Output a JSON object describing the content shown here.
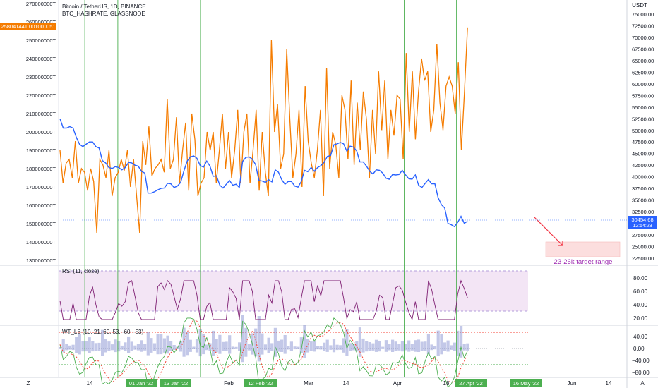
{
  "legend": {
    "symbol": "Bitcoin / TetherUS, 1D, BINANCE",
    "indicator": "BTC_HASHRATE, GLASSNODE",
    "hashrate_flag": "258041441.001000051"
  },
  "currency": "USDT",
  "price_tag": {
    "value": "30454.68",
    "countdown": "12:54:23"
  },
  "annotation": {
    "text": "23-26k target range"
  },
  "rsi": {
    "title": "RSI (11, close)",
    "ticks": [
      "80.00",
      "60.00",
      "40.00",
      "20.00"
    ]
  },
  "wt": {
    "title": "WT_LB (10, 21, 60, 53, -60, -53)",
    "ticks": [
      "40.00",
      "0.00",
      "−40.00",
      "−80.00"
    ]
  },
  "right_axis_ticks": [
    "75000.00",
    "72500.00",
    "70000.00",
    "67500.00",
    "65000.00",
    "62500.00",
    "60000.00",
    "57500.00",
    "55000.00",
    "52500.00",
    "50000.00",
    "47500.00",
    "45000.00",
    "42500.00",
    "40000.00",
    "37500.00",
    "35000.00",
    "32500.00",
    "27500.00",
    "25000.00",
    "22500.00"
  ],
  "left_axis_ticks": [
    "270000000T",
    "260000000T",
    "250000000T",
    "240000000T",
    "230000000T",
    "220000000T",
    "210000000T",
    "200000000T",
    "190000000T",
    "180000000T",
    "170000000T",
    "160000000T",
    "150000000T",
    "140000000T",
    "130000000T"
  ],
  "time_axis": {
    "ticks": [
      "14",
      "Feb",
      "Mar",
      "14",
      "Apr",
      "18",
      "Jun",
      "14"
    ],
    "highlights": [
      "01 Jan '22",
      "13 Jan '22",
      "12 Feb '22",
      "27 Apr '22",
      "16 May '22"
    ]
  },
  "corner_buttons": {
    "left": "Z",
    "right": "A"
  },
  "colors": {
    "price": "#2962ff",
    "hashrate": "#f57c00",
    "vline": "#4caf50",
    "rsi": "#7e1e72",
    "wt1": "#4caf50",
    "wt2": "#f44336",
    "target": "#fcdede",
    "arrow": "#f23645"
  },
  "chart_data": {
    "type": "line",
    "x_range": [
      "2021-12-23",
      "2022-06-19"
    ],
    "vertical_markers": [
      "2022-01-01",
      "2022-01-13",
      "2022-02-12",
      "2022-04-27",
      "2022-05-16"
    ],
    "price_axis": {
      "unit": "USDT",
      "ylim": [
        22500,
        75000
      ]
    },
    "hashrate_axis": {
      "unit": "T",
      "ylim": [
        130000000,
        270000000
      ]
    },
    "target_range": [
      23000,
      26000
    ],
    "series": [
      {
        "name": "Bitcoin / TetherUS",
        "x_start": "2021-12-23",
        "values": [
          52500,
          50500,
          50500,
          50800,
          50500,
          48500,
          47000,
          46500,
          47000,
          47500,
          47500,
          46500,
          46200,
          43500,
          43000,
          42000,
          41800,
          42200,
          42000,
          41500,
          42000,
          43100,
          43000,
          42500,
          42300,
          41200,
          40800,
          36500,
          36500,
          36800,
          37200,
          37500,
          37600,
          38600,
          38500,
          37700,
          38000,
          38800,
          41300,
          43400,
          44300,
          44500,
          44000,
          42400,
          42100,
          43400,
          42300,
          40100,
          40200,
          38200,
          37600,
          38400,
          39200,
          38200,
          38400,
          37700,
          43300,
          44200,
          44300,
          43800,
          42600,
          39200,
          39100,
          38800,
          39400,
          38900,
          41500,
          41000,
          39400,
          38400,
          39000,
          39000,
          38000,
          37800,
          39000,
          41400,
          41100,
          42000,
          41200,
          42000,
          42400,
          43100,
          44400,
          44600,
          46900,
          47100,
          47400,
          47100,
          45500,
          46600,
          46400,
          45600,
          43200,
          43200,
          42300,
          41200,
          40600,
          41500,
          41400,
          40800,
          39700,
          39500,
          40500,
          40400,
          40500,
          41400,
          40400,
          39600,
          39500,
          40400,
          38200,
          37700,
          38600,
          39400,
          38500,
          38500,
          35500,
          34000,
          33300,
          30000,
          29700,
          29300,
          30200,
          31500,
          30000,
          30450
        ]
      },
      {
        "name": "BTC_HASHRATE",
        "x_start": "2021-12-23",
        "values": [
          190000000,
          172000000,
          183000000,
          185000000,
          175000000,
          195000000,
          172000000,
          180000000,
          178000000,
          168000000,
          180000000,
          173000000,
          145000000,
          185000000,
          182000000,
          175000000,
          190000000,
          165000000,
          175000000,
          178000000,
          185000000,
          179000000,
          190000000,
          170000000,
          185000000,
          165000000,
          145000000,
          195000000,
          182000000,
          203000000,
          176000000,
          180000000,
          182000000,
          185000000,
          178000000,
          218000000,
          180000000,
          185000000,
          208000000,
          172000000,
          190000000,
          205000000,
          168000000,
          210000000,
          196000000,
          165000000,
          172000000,
          175000000,
          200000000,
          190000000,
          200000000,
          172000000,
          190000000,
          210000000,
          180000000,
          200000000,
          175000000,
          190000000,
          212000000,
          172000000,
          200000000,
          210000000,
          172000000,
          190000000,
          212000000,
          168000000,
          200000000,
          178000000,
          165000000,
          250000000,
          200000000,
          215000000,
          180000000,
          188000000,
          245000000,
          207000000,
          175000000,
          188000000,
          212000000,
          170000000,
          225000000,
          195000000,
          183000000,
          175000000,
          190000000,
          212000000,
          165000000,
          235000000,
          180000000,
          200000000,
          193000000,
          175000000,
          220000000,
          212000000,
          185000000,
          228000000,
          182000000,
          216000000,
          190000000,
          222000000,
          207000000,
          175000000,
          212000000,
          188000000,
          233000000,
          201000000,
          228000000,
          185000000,
          212000000,
          198000000,
          220000000,
          218000000,
          185000000,
          243000000,
          200000000,
          233000000,
          196000000,
          222000000,
          240000000,
          228000000,
          233000000,
          200000000,
          212000000,
          248000000,
          216000000,
          201000000,
          225000000,
          230000000,
          225000000,
          210000000,
          238000000,
          190000000,
          222000000,
          257000000
        ]
      }
    ]
  }
}
